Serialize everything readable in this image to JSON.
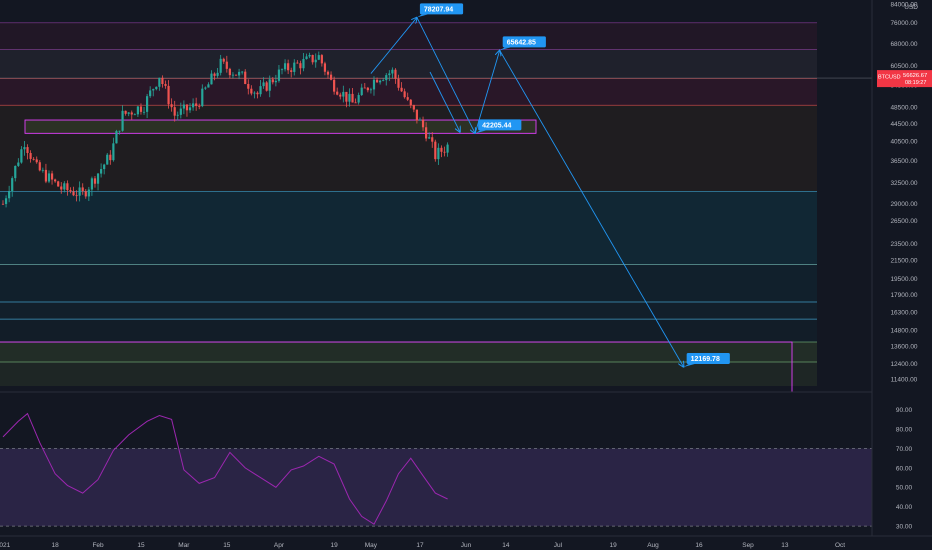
{
  "symbol": "BTCUSD",
  "price_tag": {
    "price": "56626.67",
    "countdown": "08:19:27",
    "color": "#f23645"
  },
  "currency_label": "USD",
  "colors": {
    "background": "#131722",
    "up": "#26a69a",
    "down": "#ef5350",
    "arrow": "#2962ff",
    "annotation": "#2196f3",
    "zone_border": "#e040fb",
    "rsi": "#9c27b0"
  },
  "price_axis_ticks": [
    "84000.00",
    "76000.00",
    "68000.00",
    "60500.00",
    "54500.00",
    "48500.00",
    "44500.00",
    "40500.00",
    "36500.00",
    "32500.00",
    "29000.00",
    "26500.00",
    "23500.00",
    "21500.00",
    "19500.00",
    "17900.00",
    "16300.00",
    "14800.00",
    "13600.00",
    "12400.00",
    "11400.00"
  ],
  "rsi_axis_ticks": [
    "90.00",
    "80.00",
    "70.00",
    "60.00",
    "50.00",
    "40.00",
    "30.00"
  ],
  "time_axis_ticks": [
    "2021",
    "18",
    "Feb",
    "15",
    "Mar",
    "15",
    "Apr",
    "19",
    "May",
    "17",
    "Jun",
    "14",
    "Jul",
    "19",
    "Aug",
    "16",
    "Sep",
    "13",
    "Oct"
  ],
  "annotations": {
    "target_high": "78207.94",
    "target_second": "65642.85",
    "support": "42205.44",
    "target_low": "12169.78"
  },
  "chart_data": [
    {
      "type": "candlestick",
      "symbol": "BTCUSD",
      "x_range": [
        "2021-01-01",
        "2021-10-15"
      ],
      "y_scale": "log",
      "ylim": [
        11000,
        84000
      ],
      "last_price": 56626.67,
      "horizontal_levels": [
        76000,
        66000,
        56500,
        49000,
        31000,
        21000,
        17200,
        15700,
        13900,
        12500
      ],
      "zones": [
        {
          "name": "support zone",
          "from": 42205,
          "to": 45300
        },
        {
          "name": "low zone",
          "from": 11000,
          "to": 13900
        }
      ],
      "projected_path": [
        {
          "date": "2021-05-01",
          "price": 58000
        },
        {
          "date": "2021-05-16",
          "price": 78207.94
        },
        {
          "date": "2021-06-04",
          "price": 42205.44
        },
        {
          "date": "2021-06-12",
          "price": 65642.85
        },
        {
          "date": "2021-08-11",
          "price": 12169.78
        }
      ],
      "close_path": [
        {
          "date": "2021-01-01",
          "price": 29000
        },
        {
          "date": "2021-01-08",
          "price": 40500
        },
        {
          "date": "2021-01-12",
          "price": 35000
        },
        {
          "date": "2021-01-20",
          "price": 31500
        },
        {
          "date": "2021-01-27",
          "price": 30500
        },
        {
          "date": "2021-02-05",
          "price": 37500
        },
        {
          "date": "2021-02-09",
          "price": 46500
        },
        {
          "date": "2021-02-16",
          "price": 49000
        },
        {
          "date": "2021-02-21",
          "price": 57500
        },
        {
          "date": "2021-02-26",
          "price": 46500
        },
        {
          "date": "2021-03-05",
          "price": 49000
        },
        {
          "date": "2021-03-13",
          "price": 61000
        },
        {
          "date": "2021-03-20",
          "price": 57000
        },
        {
          "date": "2021-03-25",
          "price": 52000
        },
        {
          "date": "2021-04-02",
          "price": 59000
        },
        {
          "date": "2021-04-14",
          "price": 63500
        },
        {
          "date": "2021-04-18",
          "price": 55500
        },
        {
          "date": "2021-04-25",
          "price": 49500
        },
        {
          "date": "2021-05-03",
          "price": 57000
        },
        {
          "date": "2021-05-08",
          "price": 58500
        },
        {
          "date": "2021-05-13",
          "price": 49500
        },
        {
          "date": "2021-05-19",
          "price": 42500
        },
        {
          "date": "2021-05-22",
          "price": 37500
        },
        {
          "date": "2021-05-26",
          "price": 39500
        }
      ]
    },
    {
      "type": "line",
      "name": "RSI",
      "ylim": [
        28,
        95
      ],
      "bands": [
        30,
        70
      ],
      "x": [
        "2021-01-01",
        "2021-01-06",
        "2021-01-09",
        "2021-01-13",
        "2021-01-18",
        "2021-01-22",
        "2021-01-27",
        "2021-02-01",
        "2021-02-06",
        "2021-02-11",
        "2021-02-17",
        "2021-02-21",
        "2021-02-25",
        "2021-03-01",
        "2021-03-06",
        "2021-03-11",
        "2021-03-16",
        "2021-03-21",
        "2021-03-26",
        "2021-03-31",
        "2021-04-05",
        "2021-04-09",
        "2021-04-14",
        "2021-04-19",
        "2021-04-24",
        "2021-04-28",
        "2021-05-02",
        "2021-05-06",
        "2021-05-10",
        "2021-05-14",
        "2021-05-18",
        "2021-05-22",
        "2021-05-26"
      ],
      "values": [
        76,
        84,
        88,
        73,
        57,
        51,
        47,
        54,
        69,
        77,
        84,
        87,
        85,
        59,
        52,
        55,
        68,
        60,
        55,
        50,
        59,
        61,
        66,
        62,
        44,
        35,
        31,
        43,
        57,
        65,
        56,
        47,
        44
      ]
    }
  ]
}
